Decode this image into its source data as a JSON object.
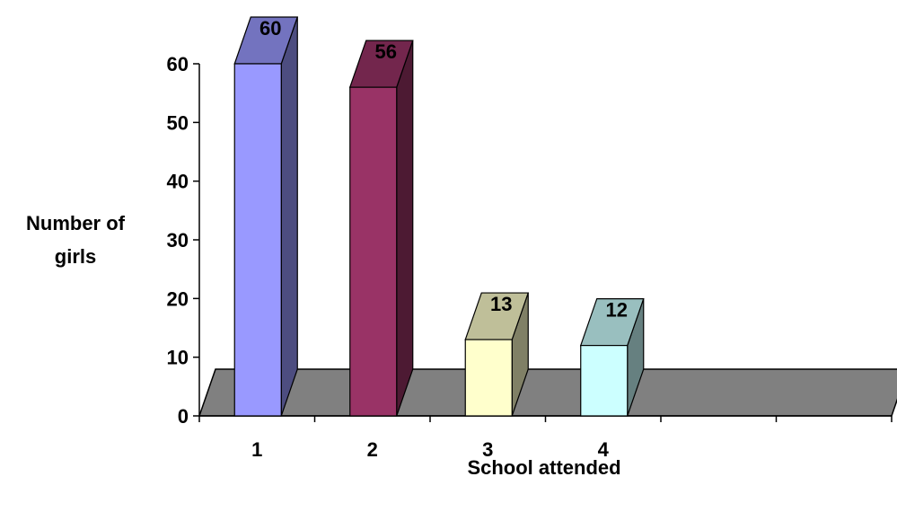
{
  "chart_data": {
    "type": "bar",
    "categories": [
      "1",
      "2",
      "3",
      "4",
      "",
      ""
    ],
    "values": [
      60,
      56,
      13,
      12,
      null,
      null
    ],
    "xlabel": "School attended",
    "ylabel_lines": [
      "Number of",
      "girls"
    ],
    "ylim": [
      0,
      60
    ],
    "y_ticks": [
      0,
      10,
      20,
      30,
      40,
      50,
      60
    ],
    "data_labels": [
      "60",
      "56",
      "13",
      "12",
      "",
      ""
    ],
    "bar_colors": [
      {
        "front": "#9999ff",
        "top": "#7373bf",
        "side": "#4d4d80"
      },
      {
        "front": "#993366",
        "top": "#73264d",
        "side": "#4d1a33"
      },
      {
        "front": "#ffffcc",
        "top": "#bfbf99",
        "side": "#808066"
      },
      {
        "front": "#ccffff",
        "top": "#99bfbf",
        "side": "#668080"
      }
    ],
    "floor_color": "#808080",
    "grid": false,
    "legend": "none",
    "style": "3d-column"
  }
}
